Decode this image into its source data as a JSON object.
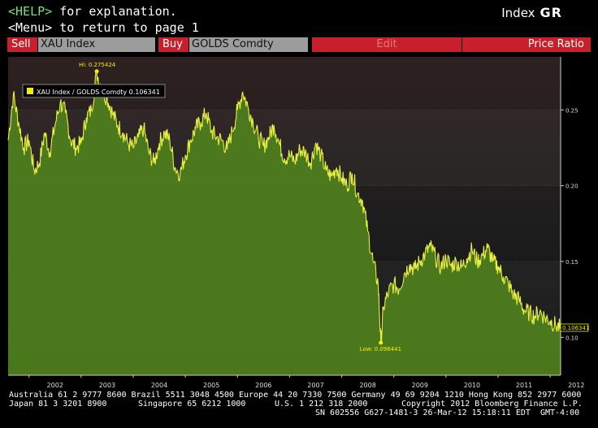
{
  "header": {
    "help_key": "<HELP>",
    "help_text": " for explanation.",
    "menu_key": "<Menu>",
    "menu_text": " to return to page 1",
    "index_label": "Index",
    "function_code": "GR"
  },
  "toolbar": {
    "sell_label": "Sell",
    "sell_value": "XAU Index",
    "buy_label": "Buy",
    "buy_value": "GOLDS Comdty",
    "edit_label": "Edit",
    "mode_label": "Price Ratio"
  },
  "chart_data": {
    "type": "area",
    "legend": {
      "text": "XAU Index / GOLDS Comdty  0.106341",
      "placement": "top-left"
    },
    "annotations": {
      "high": "Hi: 0.275424",
      "low": "Low: 0.096441",
      "last": "0.106341"
    },
    "ylim": [
      0.075,
      0.285
    ],
    "y_ticks": [
      0.1,
      0.15,
      0.2,
      0.25
    ],
    "y_tick_labels": [
      "0.10",
      "0.15",
      "0.20",
      "0.25"
    ],
    "x_ticks": [
      "2002",
      "2003",
      "2004",
      "2005",
      "2006",
      "2007",
      "2008",
      "2009",
      "2010",
      "2011",
      "2012"
    ],
    "xlim": [
      2001.6,
      2012.2
    ],
    "series": [
      {
        "x": [
          2001.6,
          2001.7,
          2001.8,
          2001.9,
          2002.0,
          2002.1,
          2002.2,
          2002.3,
          2002.4,
          2002.5,
          2002.6,
          2002.7,
          2002.8,
          2002.9,
          2003.0,
          2003.1,
          2003.2,
          2003.3,
          2003.4,
          2003.5,
          2003.6,
          2003.7,
          2003.8,
          2003.9,
          2004.0,
          2004.1,
          2004.2,
          2004.3,
          2004.4,
          2004.5,
          2004.6,
          2004.7,
          2004.8,
          2004.9,
          2005.0,
          2005.1,
          2005.2,
          2005.3,
          2005.4,
          2005.5,
          2005.6,
          2005.7,
          2005.8,
          2005.9,
          2006.0,
          2006.1,
          2006.2,
          2006.3,
          2006.4,
          2006.5,
          2006.6,
          2006.7,
          2006.8,
          2006.9,
          2007.0,
          2007.1,
          2007.2,
          2007.3,
          2007.4,
          2007.5,
          2007.6,
          2007.7,
          2007.8,
          2007.9,
          2008.0,
          2008.1,
          2008.2,
          2008.3,
          2008.4,
          2008.5,
          2008.6,
          2008.7,
          2008.75,
          2008.8,
          2008.9,
          2009.0,
          2009.1,
          2009.2,
          2009.3,
          2009.4,
          2009.5,
          2009.6,
          2009.7,
          2009.8,
          2009.9,
          2010.0,
          2010.1,
          2010.2,
          2010.3,
          2010.4,
          2010.5,
          2010.6,
          2010.7,
          2010.8,
          2010.9,
          2011.0,
          2011.1,
          2011.2,
          2011.3,
          2011.4,
          2011.5,
          2011.6,
          2011.7,
          2011.8,
          2011.9,
          2012.0,
          2012.1,
          2012.2
        ],
        "values": [
          0.23,
          0.26,
          0.242,
          0.225,
          0.23,
          0.21,
          0.215,
          0.235,
          0.222,
          0.24,
          0.255,
          0.248,
          0.23,
          0.225,
          0.228,
          0.245,
          0.25,
          0.275,
          0.262,
          0.258,
          0.248,
          0.24,
          0.235,
          0.228,
          0.225,
          0.232,
          0.238,
          0.222,
          0.215,
          0.228,
          0.235,
          0.23,
          0.212,
          0.208,
          0.22,
          0.23,
          0.238,
          0.242,
          0.248,
          0.236,
          0.232,
          0.23,
          0.224,
          0.236,
          0.25,
          0.262,
          0.252,
          0.242,
          0.232,
          0.226,
          0.232,
          0.24,
          0.228,
          0.218,
          0.22,
          0.216,
          0.224,
          0.222,
          0.215,
          0.228,
          0.22,
          0.21,
          0.206,
          0.212,
          0.205,
          0.2,
          0.208,
          0.195,
          0.19,
          0.17,
          0.15,
          0.135,
          0.096,
          0.12,
          0.13,
          0.135,
          0.132,
          0.142,
          0.148,
          0.145,
          0.15,
          0.155,
          0.16,
          0.153,
          0.146,
          0.152,
          0.147,
          0.15,
          0.146,
          0.152,
          0.158,
          0.15,
          0.154,
          0.159,
          0.15,
          0.147,
          0.14,
          0.135,
          0.128,
          0.125,
          0.118,
          0.116,
          0.114,
          0.117,
          0.113,
          0.111,
          0.108,
          0.106
        ]
      }
    ]
  },
  "footer": {
    "line1": "Australia 61 2 9777 8600 Brazil 5511 3048 4500 Europe 44 20 7330 7500 Germany 49 69 9204 1210 Hong Kong 852 2977 6000",
    "line2a": "Japan 81 3 3201 8900",
    "line2b": "Singapore 65 6212 1000",
    "line2c": "U.S. 1 212 318 2000",
    "line2d": "Copyright 2012 Bloomberg Finance L.P.",
    "line3": "SN 602556 G627-1481-3 26-Mar-12 15:18:11 EDT  GMT-4:00"
  }
}
